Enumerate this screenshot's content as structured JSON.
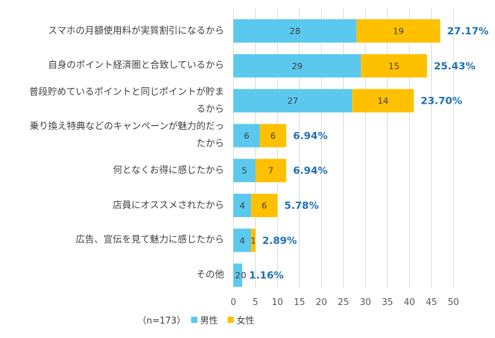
{
  "chart_data": {
    "type": "bar",
    "orientation": "horizontal",
    "stacked": true,
    "categories": [
      [
        "スマホの月額使用料が実質割引になるから"
      ],
      [
        "自身のポイント経済圏と合致しているから"
      ],
      [
        "普段貯めているポイントと同じポイントが貯ま",
        "るから"
      ],
      [
        "乗り換え特典などのキャンペーンが魅力的だっ",
        "たから"
      ],
      [
        "何となくお得に感じたから"
      ],
      [
        "店員にオススメされたから"
      ],
      [
        "広告、宣伝を見て魅力に感じたから"
      ],
      [
        "その他"
      ]
    ],
    "series": [
      {
        "name": "男性",
        "color": "#5bc8ee",
        "values": [
          28,
          29,
          27,
          6,
          5,
          4,
          4,
          2
        ]
      },
      {
        "name": "女性",
        "color": "#ffc000",
        "values": [
          19,
          15,
          14,
          6,
          7,
          6,
          1,
          0
        ]
      }
    ],
    "percent_labels": [
      "27.17%",
      "25.43%",
      "23.70%",
      "6.94%",
      "6.94%",
      "5.78%",
      "2.89%",
      "1.16%"
    ],
    "percent_color": "#1f6fb5",
    "xlim": [
      0,
      50
    ],
    "xticks": [
      0,
      5,
      10,
      15,
      20,
      25,
      30,
      35,
      40,
      45,
      50
    ],
    "grid": true,
    "legend_position": "bottom",
    "note": "（n=173）"
  }
}
